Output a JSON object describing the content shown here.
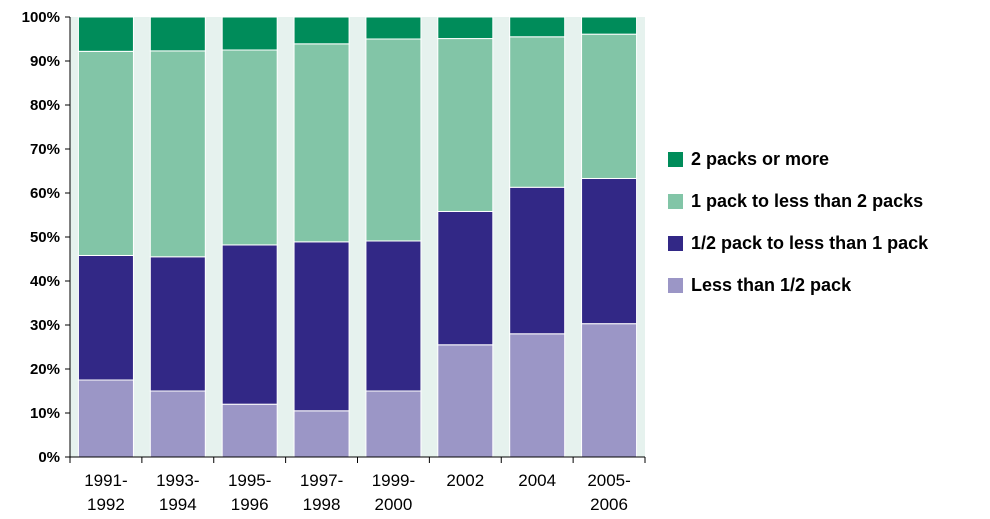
{
  "chart_data": {
    "type": "bar",
    "stacked": true,
    "categories": [
      [
        "1991-",
        "1992"
      ],
      [
        "1993-",
        "1994"
      ],
      [
        "1995-",
        "1996"
      ],
      [
        "1997-",
        "1998"
      ],
      [
        "1999-",
        "2000"
      ],
      [
        "2002"
      ],
      [
        "2004"
      ],
      [
        "2005-",
        "2006"
      ]
    ],
    "series": [
      {
        "name": "Less than 1/2 pack",
        "color": "#9b96c6",
        "values": [
          17.5,
          15,
          12,
          10.5,
          15,
          25.5,
          28,
          30.3
        ]
      },
      {
        "name": "1/2 pack to less than 1 pack",
        "color": "#322886",
        "values": [
          28.3,
          30.5,
          36.2,
          38.4,
          34.1,
          30.3,
          33.3,
          33
        ]
      },
      {
        "name": "1 pack to less than 2 packs",
        "color": "#82c5a7",
        "values": [
          46.4,
          46.8,
          44.3,
          45,
          45.9,
          39.3,
          34.2,
          32.8
        ]
      },
      {
        "name": "2 packs or more",
        "color": "#008c5a",
        "values": [
          7.8,
          7.7,
          7.5,
          6.1,
          5,
          4.9,
          4.5,
          3.9
        ]
      }
    ],
    "yticks": [
      "0%",
      "10%",
      "20%",
      "30%",
      "40%",
      "50%",
      "60%",
      "70%",
      "80%",
      "90%",
      "100%"
    ],
    "ylim": [
      0,
      100
    ],
    "legend_position": "right",
    "legend_order": [
      3,
      2,
      1,
      0
    ],
    "plot_background": "#e6f2ee",
    "grid": false
  }
}
